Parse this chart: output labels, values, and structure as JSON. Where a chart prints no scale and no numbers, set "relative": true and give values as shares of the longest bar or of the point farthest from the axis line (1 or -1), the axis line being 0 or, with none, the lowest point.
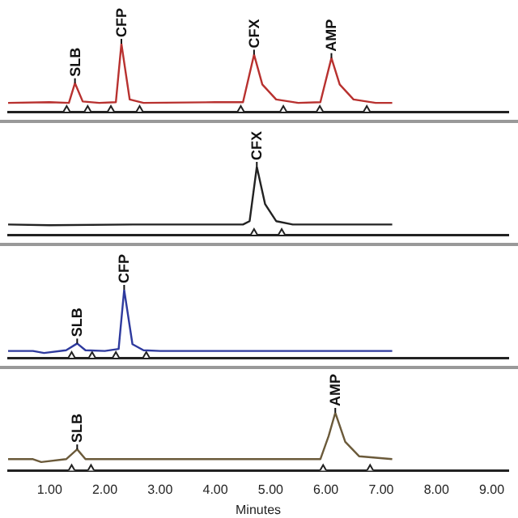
{
  "chart_data": [
    {
      "type": "line",
      "relative": true,
      "grid": false,
      "legend": false,
      "xlim": [
        0.25,
        9.3
      ],
      "series": [
        {
          "type": "line",
          "marker": "none",
          "color": "#b8312f",
          "x": [
            0.25,
            1.0,
            1.35,
            1.46,
            1.6,
            1.9,
            2.2,
            2.3,
            2.45,
            2.7,
            4.0,
            4.5,
            4.7,
            4.85,
            5.1,
            5.5,
            5.9,
            6.1,
            6.25,
            6.5,
            6.9,
            7.2
          ],
          "values": [
            0.13,
            0.14,
            0.13,
            0.42,
            0.15,
            0.13,
            0.14,
            1,
            0.18,
            0.13,
            0.14,
            0.14,
            0.84,
            0.4,
            0.18,
            0.13,
            0.14,
            0.79,
            0.4,
            0.18,
            0.13,
            0.13
          ]
        },
        {
          "type": "scatter",
          "marker": "triangle",
          "color": "#222222",
          "x": [
            1.31,
            1.69,
            2.11,
            2.63,
            4.46,
            5.23,
            5.89,
            6.74
          ],
          "values": [
            0,
            0,
            0,
            0,
            0,
            0,
            0,
            0
          ]
        }
      ],
      "annotations": [
        {
          "text": "SLB",
          "x": 1.46,
          "y": 0.42
        },
        {
          "text": "CFP",
          "x": 2.3,
          "y": 1
        },
        {
          "text": "CFX",
          "x": 4.7,
          "y": 0.84
        },
        {
          "text": "AMP",
          "x": 6.1,
          "y": 0.79
        }
      ]
    },
    {
      "type": "line",
      "relative": true,
      "grid": false,
      "legend": false,
      "xlim": [
        0.25,
        9.3
      ],
      "series": [
        {
          "type": "line",
          "marker": "none",
          "color": "#222222",
          "x": [
            0.25,
            1.0,
            2.5,
            4.5,
            4.62,
            4.75,
            4.9,
            5.1,
            5.4,
            7.2
          ],
          "values": [
            0.15,
            0.14,
            0.15,
            0.15,
            0.2,
            1,
            0.45,
            0.2,
            0.15,
            0.15
          ]
        },
        {
          "type": "scatter",
          "marker": "triangle",
          "color": "#222222",
          "x": [
            4.7,
            5.2
          ],
          "values": [
            0,
            0
          ]
        }
      ],
      "annotations": [
        {
          "text": "CFX",
          "x": 4.75,
          "y": 1
        }
      ]
    },
    {
      "type": "line",
      "relative": true,
      "grid": false,
      "legend": false,
      "xlim": [
        0.25,
        9.3
      ],
      "series": [
        {
          "type": "line",
          "marker": "none",
          "color": "#2e3a9e",
          "x": [
            0.25,
            0.7,
            0.9,
            1.3,
            1.5,
            1.65,
            2.0,
            2.25,
            2.35,
            2.5,
            2.7,
            3.0,
            7.2
          ],
          "values": [
            0.1,
            0.1,
            0.07,
            0.11,
            0.21,
            0.11,
            0.1,
            0.13,
            1,
            0.2,
            0.11,
            0.1,
            0.1
          ]
        },
        {
          "type": "scatter",
          "marker": "triangle",
          "color": "#222222",
          "x": [
            1.4,
            1.77,
            2.2,
            2.75
          ],
          "values": [
            0,
            0,
            0,
            0
          ]
        }
      ],
      "annotations": [
        {
          "text": "SLB",
          "x": 1.5,
          "y": 0.21
        },
        {
          "text": "CFP",
          "x": 2.35,
          "y": 1
        }
      ]
    },
    {
      "type": "line",
      "relative": true,
      "grid": false,
      "legend": false,
      "xlabel": "Minutes",
      "xlim": [
        0.25,
        9.3
      ],
      "xticks": [
        {
          "value": 1,
          "label": "1.00"
        },
        {
          "value": 2,
          "label": "2.00"
        },
        {
          "value": 3,
          "label": "3.00"
        },
        {
          "value": 4,
          "label": "4.00"
        },
        {
          "value": 5,
          "label": "5.00"
        },
        {
          "value": 6,
          "label": "6.00"
        },
        {
          "value": 7,
          "label": "7.00"
        },
        {
          "value": 8,
          "label": "8.00"
        },
        {
          "value": 9,
          "label": "9.00"
        }
      ],
      "series": [
        {
          "type": "line",
          "marker": "none",
          "color": "#6b5a3a",
          "x": [
            0.25,
            0.7,
            0.85,
            1.3,
            1.5,
            1.65,
            2.0,
            5.9,
            6.05,
            6.17,
            6.35,
            6.6,
            7.2
          ],
          "values": [
            0.2,
            0.2,
            0.15,
            0.2,
            0.37,
            0.2,
            0.2,
            0.2,
            0.6,
            1,
            0.5,
            0.25,
            0.2
          ]
        },
        {
          "type": "scatter",
          "marker": "triangle",
          "color": "#222222",
          "x": [
            1.4,
            1.75,
            5.95,
            6.8
          ],
          "values": [
            0,
            0,
            0,
            0
          ]
        }
      ],
      "annotations": [
        {
          "text": "SLB",
          "x": 1.5,
          "y": 0.37
        },
        {
          "text": "AMP",
          "x": 6.17,
          "y": 1
        }
      ]
    }
  ]
}
